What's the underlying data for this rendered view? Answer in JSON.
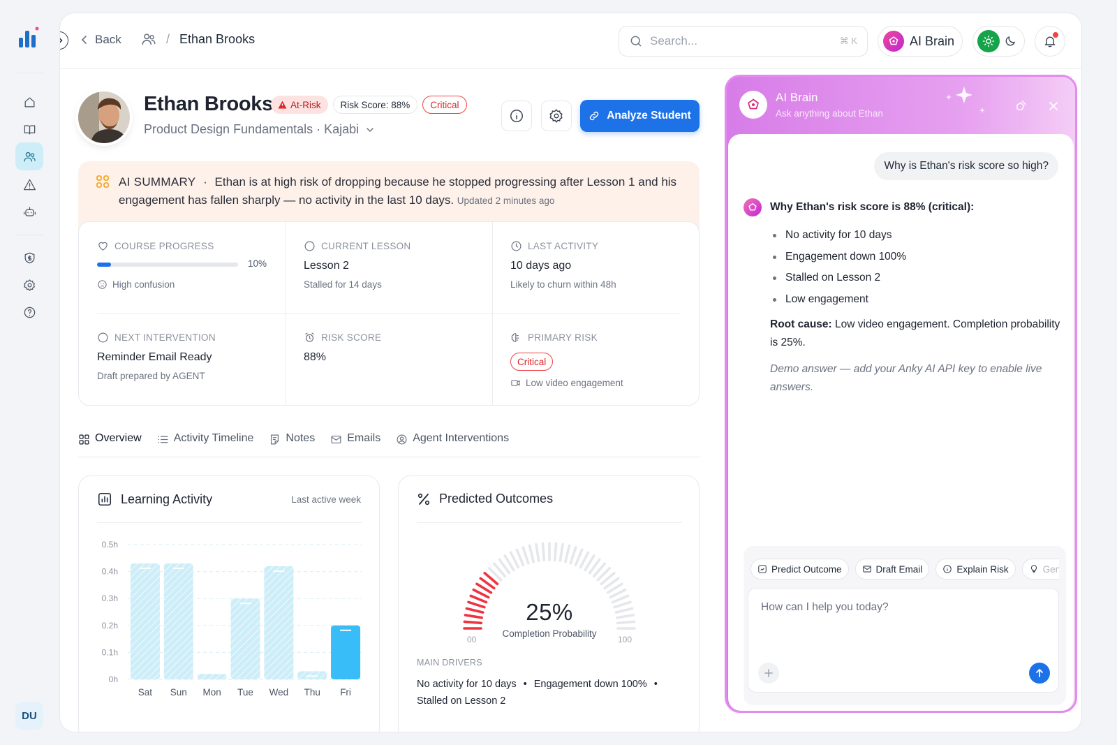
{
  "nav": {
    "back_label": "Back",
    "breadcrumb_name": "Ethan Brooks",
    "search_placeholder": "Search...",
    "search_shortcut": "⌘ K",
    "ai_brain_label": "AI Brain",
    "user_initials": "DU"
  },
  "profile": {
    "name": "Ethan Brooks",
    "status_badge": "At-Risk",
    "risk_score_badge": "Risk Score: 88%",
    "severity_badge": "Critical",
    "course": "Product Design Fundamentals · Kajabi",
    "analyze_button": "Analyze Student"
  },
  "summary": {
    "label": "AI SUMMARY",
    "separator": "·",
    "text": "Ethan is at high risk of dropping because he stopped progressing after Lesson 1 and his engagement has fallen sharply — no activity in the last 10 days.",
    "updated": "Updated 2 minutes ago"
  },
  "stats": {
    "course_progress": {
      "label": "COURSE PROGRESS",
      "percent_label": "10%",
      "percent": 10,
      "sub": "High confusion"
    },
    "current_lesson": {
      "label": "CURRENT LESSON",
      "value": "Lesson 2",
      "sub": "Stalled for 14 days"
    },
    "last_activity": {
      "label": "LAST ACTIVITY",
      "value": "10 days ago",
      "sub": "Likely to churn within 48h"
    },
    "next_intervention": {
      "label": "NEXT INTERVENTION",
      "value": "Reminder Email Ready",
      "sub": "Draft prepared by AGENT"
    },
    "risk_score": {
      "label": "RISK SCORE",
      "value": "88%"
    },
    "primary_risk": {
      "label": "PRIMARY RISK",
      "tag": "Critical",
      "sub": "Low video engagement"
    }
  },
  "tabs": [
    {
      "label": "Overview",
      "active": true
    },
    {
      "label": "Activity Timeline"
    },
    {
      "label": "Notes"
    },
    {
      "label": "Emails"
    },
    {
      "label": "Agent Interventions"
    }
  ],
  "learning_activity": {
    "title": "Learning Activity",
    "meta": "Last active week"
  },
  "predicted_outcomes": {
    "title": "Predicted Outcomes",
    "value_label": "25%",
    "value": 25,
    "caption": "Completion Probability",
    "min_label": "00",
    "max_label": "100",
    "drivers_label": "MAIN DRIVERS",
    "drivers": [
      "No activity for 10 days",
      "Engagement down 100%",
      "Stalled on Lesson 2"
    ]
  },
  "chart_data": {
    "type": "bar",
    "title": "Learning Activity",
    "categories": [
      "Sat",
      "Sun",
      "Mon",
      "Tue",
      "Wed",
      "Thu",
      "Fri"
    ],
    "values": [
      0.43,
      0.43,
      0.02,
      0.3,
      0.42,
      0.03,
      0.2
    ],
    "highlight_index": 6,
    "y_ticks": [
      "0h",
      "0.1h",
      "0.2h",
      "0.3h",
      "0.4h",
      "0.5h"
    ],
    "ylim": [
      0,
      0.5
    ],
    "unit": "h",
    "grid": true,
    "colors": {
      "bar": "#cdeef8",
      "highlight": "#38bdf8"
    }
  },
  "ai_brain": {
    "title": "AI Brain",
    "subtitle": "Ask anything about Ethan",
    "question": "Why is Ethan's risk score so high?",
    "answer_heading": "Why Ethan's risk score is 88% (critical):",
    "bullets": [
      "No activity for 10 days",
      "Engagement down 100%",
      "Stalled on Lesson 2",
      "Low engagement"
    ],
    "root_label": "Root cause:",
    "root_text": "Low video engagement. Completion probability is 25%.",
    "demo_note": "Demo answer — add your Anky AI API key to enable live answers.",
    "chips": [
      "Predict Outcome",
      "Draft Email",
      "Explain Risk",
      "Generate"
    ],
    "input_placeholder": "How can I help you today?"
  },
  "colors": {
    "accent": "#1d72e8",
    "danger": "#ef4444",
    "brain": "#d77ce8"
  }
}
